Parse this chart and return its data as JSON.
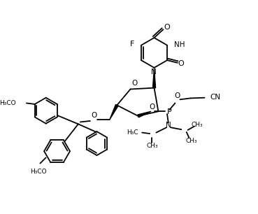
{
  "bg_color": "#ffffff",
  "fig_width": 3.69,
  "fig_height": 3.06,
  "dpi": 100,
  "lw": 1.3,
  "fs": 7.0,
  "xlim": [
    0,
    9.2
  ],
  "ylim": [
    0,
    7.6
  ]
}
